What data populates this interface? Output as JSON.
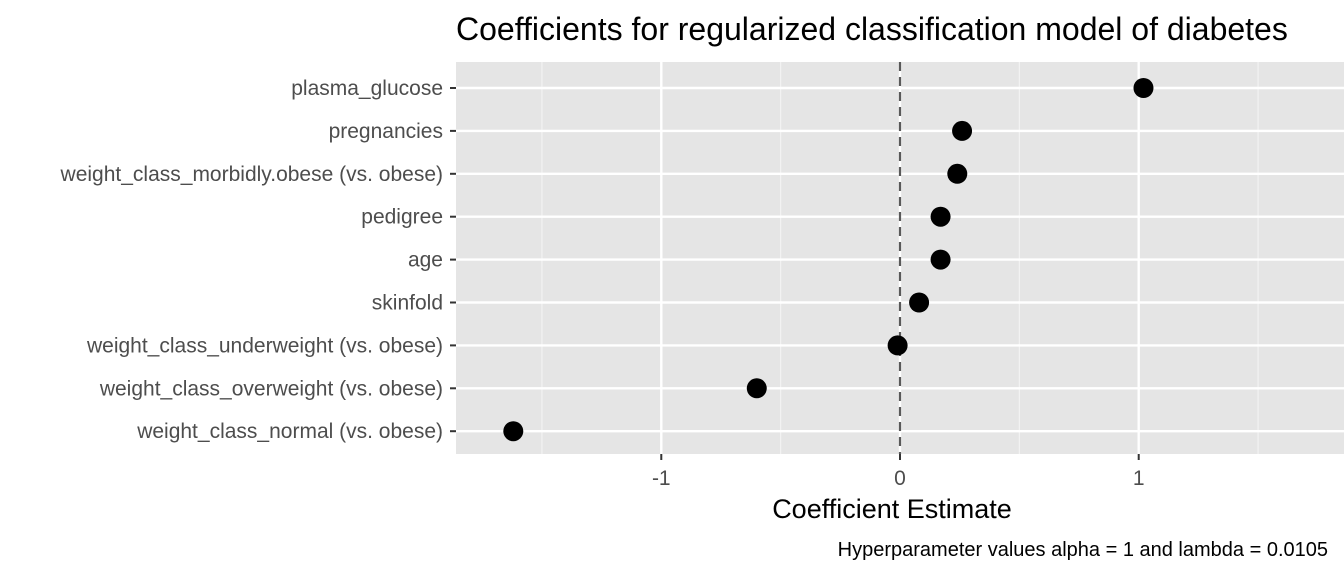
{
  "chart_data": {
    "type": "scatter",
    "title": "Coefficients for regularized classification model of diabetes",
    "xlabel": "Coefficient Estimate",
    "ylabel": "",
    "caption": "Hyperparameter values alpha = 1 and lambda = 0.0105",
    "xlim": [
      -1.86,
      1.86
    ],
    "x_ticks": [
      -1,
      0,
      1
    ],
    "x_tick_labels": [
      "-1",
      "0",
      "1"
    ],
    "reference_line": {
      "x": 0,
      "style": "dashed"
    },
    "grid": true,
    "panel_background": "#e5e5e5",
    "point_color": "#000000",
    "categories": [
      "plasma_glucose",
      "pregnancies",
      "weight_class_morbidly.obese (vs. obese)",
      "pedigree",
      "age",
      "skinfold",
      "weight_class_underweight (vs. obese)",
      "weight_class_overweight (vs. obese)",
      "weight_class_normal (vs. obese)"
    ],
    "values": [
      1.02,
      0.26,
      0.24,
      0.17,
      0.17,
      0.08,
      -0.01,
      -0.6,
      -1.62
    ]
  }
}
